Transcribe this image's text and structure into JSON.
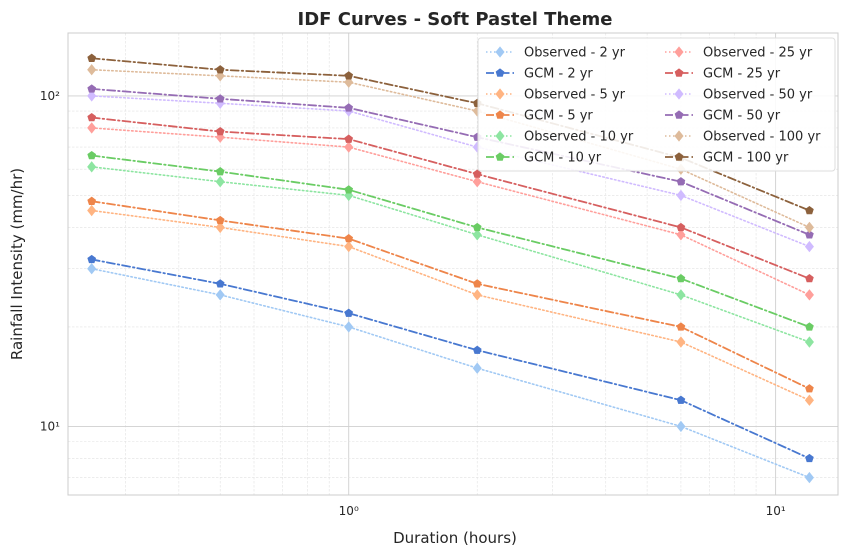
{
  "chart_data": {
    "type": "line",
    "title": "IDF Curves - Soft Pastel Theme",
    "xlabel": "Duration (hours)",
    "ylabel": "Rainfall Intensity (mm/hr)",
    "xscale": "log",
    "yscale": "log",
    "xlim": [
      0.22,
      14
    ],
    "ylim": [
      6.2,
      155
    ],
    "x_ticks": [
      {
        "value": 1,
        "label": "10⁰"
      },
      {
        "value": 10,
        "label": "10¹"
      }
    ],
    "y_ticks": [
      {
        "value": 10,
        "label": "10¹"
      },
      {
        "value": 100,
        "label": "10²"
      }
    ],
    "grid": true,
    "legend_position": "top-right",
    "legend_columns": 2,
    "x": [
      0.25,
      0.5,
      1,
      2,
      6,
      12
    ],
    "series": [
      {
        "name": "Observed - 2 yr",
        "values": [
          30,
          25,
          20,
          15,
          10,
          7
        ],
        "color": "#a1c9f4",
        "dash": "dotted",
        "marker": "diamond"
      },
      {
        "name": "GCM - 2 yr",
        "values": [
          32,
          27,
          22,
          17,
          12,
          8
        ],
        "color": "#4878d0",
        "dash": "dashdot",
        "marker": "pentagon"
      },
      {
        "name": "Observed - 5 yr",
        "values": [
          45,
          40,
          35,
          25,
          18,
          12
        ],
        "color": "#ffb482",
        "dash": "dotted",
        "marker": "diamond"
      },
      {
        "name": "GCM - 5 yr",
        "values": [
          48,
          42,
          37,
          27,
          20,
          13
        ],
        "color": "#ee854a",
        "dash": "dashdot",
        "marker": "pentagon"
      },
      {
        "name": "Observed - 10 yr",
        "values": [
          61,
          55,
          50,
          38,
          25,
          18
        ],
        "color": "#8de5a1",
        "dash": "dotted",
        "marker": "diamond"
      },
      {
        "name": "GCM - 10 yr",
        "values": [
          66,
          59,
          52,
          40,
          28,
          20
        ],
        "color": "#6acc64",
        "dash": "dashdot",
        "marker": "pentagon"
      },
      {
        "name": "Observed - 25 yr",
        "values": [
          80,
          75,
          70,
          55,
          38,
          25
        ],
        "color": "#ff9f9b",
        "dash": "dotted",
        "marker": "diamond"
      },
      {
        "name": "GCM - 25 yr",
        "values": [
          86,
          78,
          74,
          58,
          40,
          28
        ],
        "color": "#d65f5f",
        "dash": "dashdot",
        "marker": "pentagon"
      },
      {
        "name": "Observed - 50 yr",
        "values": [
          100,
          95,
          90,
          70,
          50,
          35
        ],
        "color": "#d0bbff",
        "dash": "dotted",
        "marker": "diamond"
      },
      {
        "name": "GCM - 50 yr",
        "values": [
          105,
          98,
          92,
          75,
          55,
          38
        ],
        "color": "#956cb4",
        "dash": "dashdot",
        "marker": "pentagon"
      },
      {
        "name": "Observed - 100 yr",
        "values": [
          120,
          115,
          110,
          90,
          60,
          40
        ],
        "color": "#debb9b",
        "dash": "dotted",
        "marker": "diamond"
      },
      {
        "name": "GCM - 100 yr",
        "values": [
          130,
          120,
          115,
          95,
          65,
          45
        ],
        "color": "#8c613c",
        "dash": "dashdot",
        "marker": "pentagon"
      }
    ]
  }
}
